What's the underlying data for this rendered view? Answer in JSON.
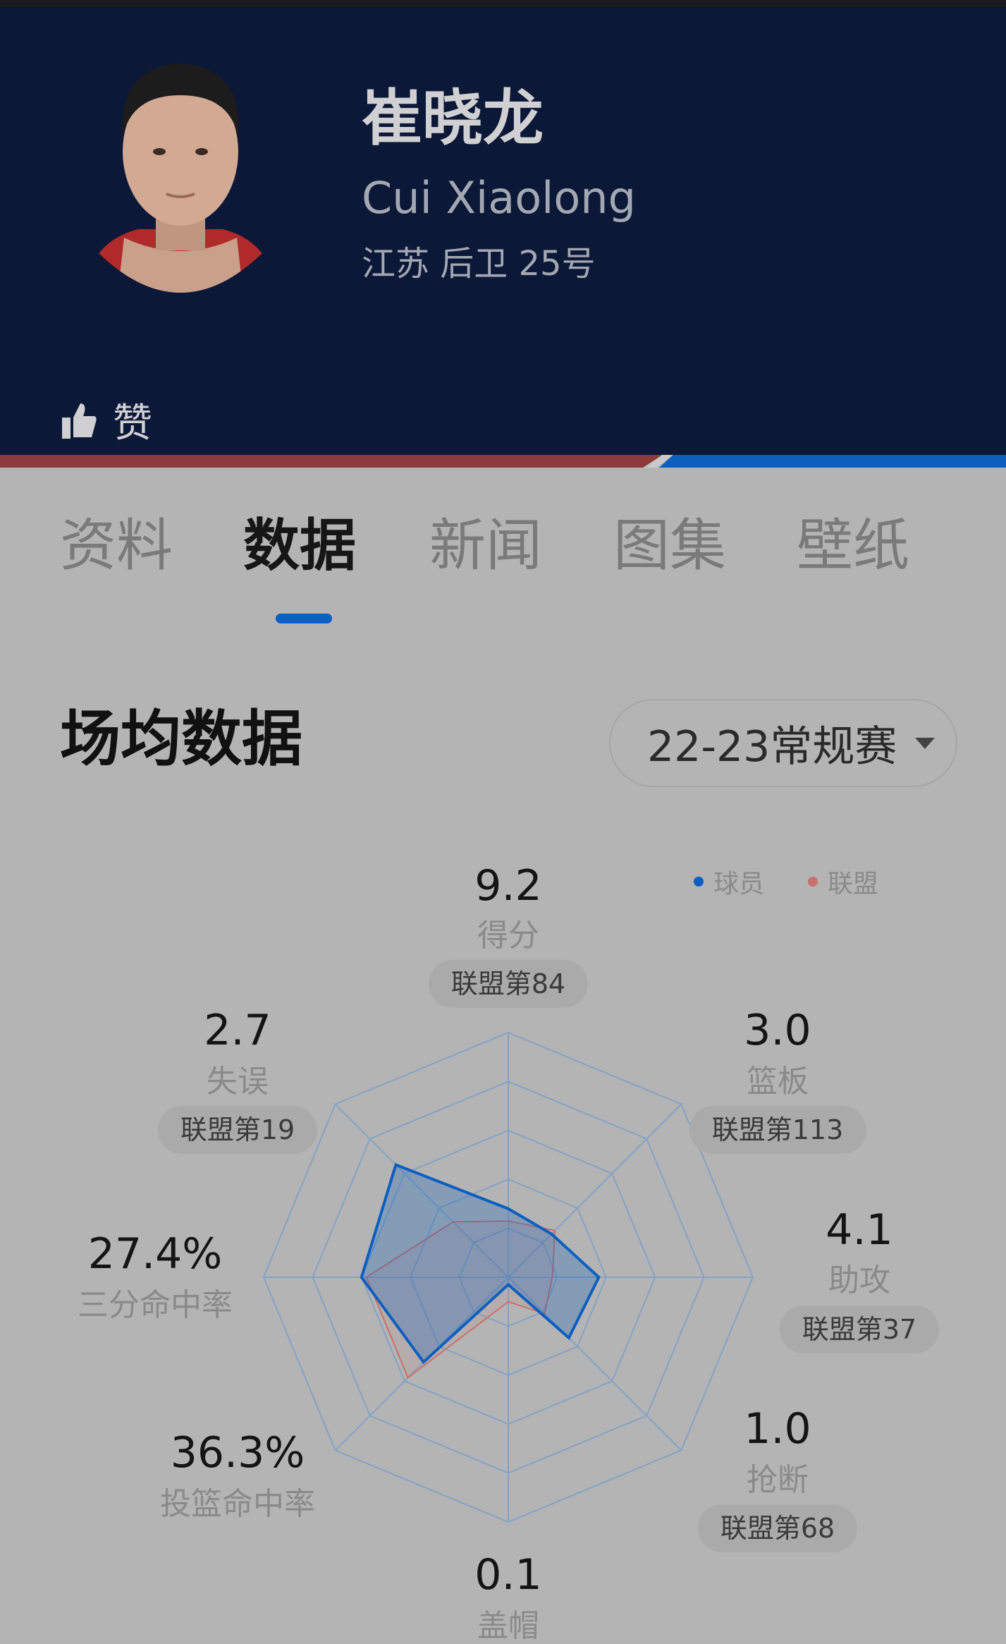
{
  "player": {
    "name_cn": "崔晓龙",
    "name_en": "Cui Xiaolong",
    "meta": "江苏 后卫 25号",
    "like_label": "赞"
  },
  "colors": {
    "header": "#0c1838",
    "accent": "#0b5fbf",
    "league": "#c8706c",
    "team_red": "#8c3a3a"
  },
  "tabs": [
    {
      "label": "资料"
    },
    {
      "label": "数据",
      "active": true
    },
    {
      "label": "新闻"
    },
    {
      "label": "图集"
    },
    {
      "label": "壁纸"
    }
  ],
  "section": {
    "title": "场均数据",
    "season_select": "22-23常规赛"
  },
  "legend": {
    "player": "球员",
    "league": "联盟"
  },
  "stats": [
    {
      "name": "得分",
      "value": "9.2",
      "rank": "联盟第84"
    },
    {
      "name": "篮板",
      "value": "3.0",
      "rank": "联盟第113"
    },
    {
      "name": "助攻",
      "value": "4.1",
      "rank": "联盟第37"
    },
    {
      "name": "抢断",
      "value": "1.0",
      "rank": "联盟第68"
    },
    {
      "name": "盖帽",
      "value": "0.1"
    },
    {
      "name": "投篮命中率",
      "value": "36.3%"
    },
    {
      "name": "三分命中率",
      "value": "27.4%"
    },
    {
      "name": "失误",
      "value": "2.7",
      "rank": "联盟第19"
    }
  ],
  "chart_data": {
    "type": "radar",
    "axes": [
      "得分",
      "篮板",
      "助攻",
      "抢断",
      "盖帽",
      "投篮命中率",
      "三分命中率",
      "失误"
    ],
    "rings": 5,
    "range": [
      0,
      1
    ],
    "series": [
      {
        "name": "球员",
        "color": "#0b5fbf",
        "values": [
          0.28,
          0.25,
          0.37,
          0.35,
          0.03,
          0.49,
          0.6,
          0.65
        ]
      },
      {
        "name": "联盟",
        "color": "#c8706c",
        "values": [
          0.23,
          0.27,
          0.18,
          0.21,
          0.1,
          0.58,
          0.58,
          0.32
        ]
      }
    ]
  }
}
